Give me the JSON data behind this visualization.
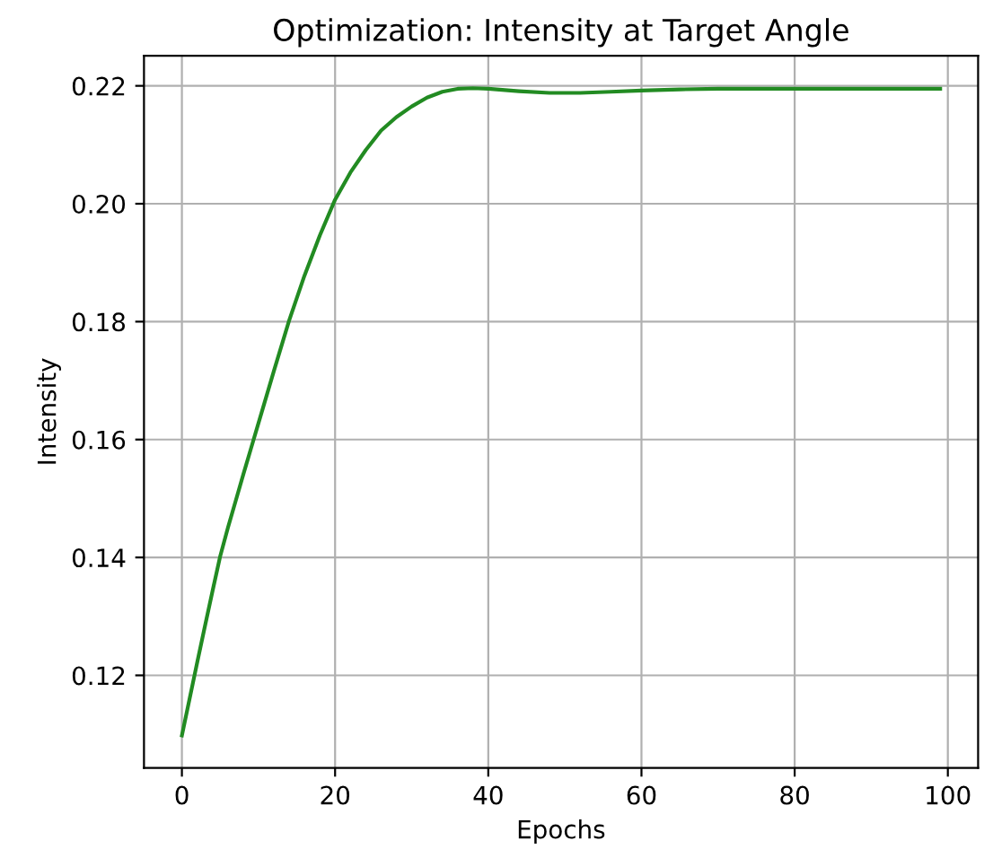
{
  "chart_data": {
    "type": "line",
    "title": "Optimization: Intensity at Target Angle",
    "xlabel": "Epochs",
    "ylabel": "Intensity",
    "x": [
      0,
      1,
      2,
      3,
      4,
      5,
      6,
      7,
      8,
      9,
      10,
      12,
      14,
      16,
      18,
      20,
      22,
      24,
      26,
      28,
      30,
      32,
      34,
      36,
      38,
      40,
      44,
      48,
      52,
      56,
      60,
      65,
      70,
      80,
      90,
      99
    ],
    "series": [
      {
        "color": "#228b22",
        "values": [
          0.1098,
          0.116,
          0.1222,
          0.1283,
          0.1343,
          0.1402,
          0.145,
          0.1495,
          0.154,
          0.1584,
          0.1628,
          0.1716,
          0.1802,
          0.1878,
          0.1946,
          0.2007,
          0.2053,
          0.2091,
          0.2124,
          0.2147,
          0.2165,
          0.218,
          0.219,
          0.2195,
          0.2196,
          0.2195,
          0.2191,
          0.2188,
          0.2188,
          0.219,
          0.2192,
          0.2194,
          0.2195,
          0.2195,
          0.2195,
          0.2195
        ]
      }
    ],
    "xlim": [
      -4.95,
      103.95
    ],
    "xticks": [
      0,
      20,
      40,
      60,
      80,
      100
    ],
    "ylim": [
      0.1043,
      0.2251
    ],
    "yticks": [
      {
        "value": 0.12,
        "label": "0.12"
      },
      {
        "value": 0.14,
        "label": "0.14"
      },
      {
        "value": 0.16,
        "label": "0.16"
      },
      {
        "value": 0.18,
        "label": "0.18"
      },
      {
        "value": 0.2,
        "label": "0.20"
      },
      {
        "value": 0.22,
        "label": "0.22"
      }
    ],
    "grid": true,
    "marker": "none",
    "line_style": "solid"
  }
}
